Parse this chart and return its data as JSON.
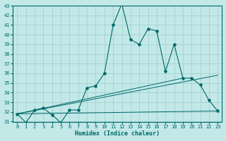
{
  "title": "",
  "xlabel": "Humidex (Indice chaleur)",
  "ylabel": "",
  "bg_color": "#c2e8e8",
  "grid_color": "#9ecece",
  "line_color": "#006868",
  "xlim": [
    -0.5,
    23.5
  ],
  "ylim": [
    31,
    43
  ],
  "xticks": [
    0,
    1,
    2,
    3,
    4,
    5,
    6,
    7,
    8,
    9,
    10,
    11,
    12,
    13,
    14,
    15,
    16,
    17,
    18,
    19,
    20,
    21,
    22,
    23
  ],
  "yticks": [
    31,
    32,
    33,
    34,
    35,
    36,
    37,
    38,
    39,
    40,
    41,
    42,
    43
  ],
  "series": {
    "main": {
      "x": [
        0,
        1,
        2,
        3,
        4,
        5,
        6,
        7,
        8,
        9,
        10,
        11,
        12,
        13,
        14,
        15,
        16,
        17,
        18,
        19,
        20,
        21,
        22,
        23
      ],
      "y": [
        31.8,
        30.9,
        32.2,
        32.4,
        31.7,
        30.9,
        32.2,
        32.2,
        34.5,
        34.7,
        36.0,
        41.0,
        43.2,
        39.5,
        39.0,
        40.6,
        40.4,
        36.2,
        39.0,
        35.5,
        35.5,
        34.8,
        33.2,
        32.1
      ]
    },
    "line1": {
      "x": [
        0,
        23
      ],
      "y": [
        31.8,
        32.1
      ]
    },
    "line2": {
      "x": [
        0,
        19
      ],
      "y": [
        31.8,
        35.5
      ]
    },
    "line3": {
      "x": [
        0,
        23
      ],
      "y": [
        31.8,
        35.8
      ]
    }
  }
}
